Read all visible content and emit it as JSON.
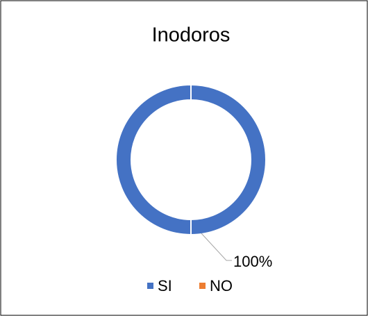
{
  "chart_data": {
    "type": "donut",
    "title": "Inodoros",
    "categories": [
      "SI",
      "NO"
    ],
    "values": [
      100,
      0
    ],
    "value_labels": [
      "100%",
      null
    ],
    "colors": [
      "#4472c4",
      "#ed7d31"
    ],
    "legend": "bottom"
  }
}
